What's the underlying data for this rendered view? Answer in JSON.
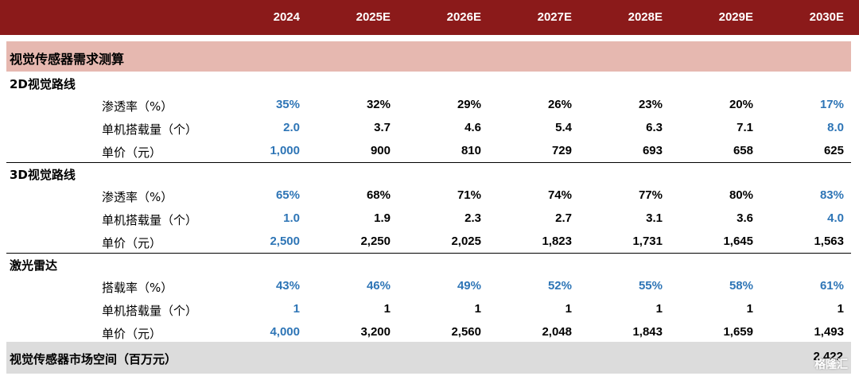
{
  "header": {
    "years": [
      "2024",
      "2025E",
      "2026E",
      "2027E",
      "2028E",
      "2029E",
      "2030E"
    ]
  },
  "band_title": "视觉传感器需求测算",
  "sections": [
    {
      "title": "2D视觉路线",
      "rows": [
        {
          "label": "渗透率（%）",
          "values": [
            "35%",
            "32%",
            "29%",
            "26%",
            "23%",
            "20%",
            "17%"
          ],
          "colors": [
            "blue",
            "black",
            "black",
            "black",
            "black",
            "black",
            "blue"
          ]
        },
        {
          "label": "单机搭载量（个）",
          "values": [
            "2.0",
            "3.7",
            "4.6",
            "5.4",
            "6.3",
            "7.1",
            "8.0"
          ],
          "colors": [
            "blue",
            "black",
            "black",
            "black",
            "black",
            "black",
            "blue"
          ]
        },
        {
          "label": "单价（元）",
          "values": [
            "1,000",
            "900",
            "810",
            "729",
            "693",
            "658",
            "625"
          ],
          "colors": [
            "blue",
            "black",
            "black",
            "black",
            "black",
            "black",
            "black"
          ]
        }
      ]
    },
    {
      "title": "3D视觉路线",
      "rows": [
        {
          "label": "渗透率（%）",
          "values": [
            "65%",
            "68%",
            "71%",
            "74%",
            "77%",
            "80%",
            "83%"
          ],
          "colors": [
            "blue",
            "black",
            "black",
            "black",
            "black",
            "black",
            "blue"
          ]
        },
        {
          "label": "单机搭载量（个）",
          "values": [
            "1.0",
            "1.9",
            "2.3",
            "2.7",
            "3.1",
            "3.6",
            "4.0"
          ],
          "colors": [
            "blue",
            "black",
            "black",
            "black",
            "black",
            "black",
            "blue"
          ]
        },
        {
          "label": "单价（元）",
          "values": [
            "2,500",
            "2,250",
            "2,025",
            "1,823",
            "1,731",
            "1,645",
            "1,563"
          ],
          "colors": [
            "blue",
            "black",
            "black",
            "black",
            "black",
            "black",
            "black"
          ]
        }
      ]
    },
    {
      "title": "激光雷达",
      "rows": [
        {
          "label": "搭载率（%）",
          "values": [
            "43%",
            "46%",
            "49%",
            "52%",
            "55%",
            "58%",
            "61%"
          ],
          "colors": [
            "blue",
            "blue",
            "blue",
            "blue",
            "blue",
            "blue",
            "blue"
          ]
        },
        {
          "label": "单机搭载量（个）",
          "values": [
            "1",
            "1",
            "1",
            "1",
            "1",
            "1",
            "1"
          ],
          "colors": [
            "blue",
            "black",
            "black",
            "black",
            "black",
            "black",
            "black"
          ]
        },
        {
          "label": "单价（元）",
          "values": [
            "4,000",
            "3,200",
            "2,560",
            "2,048",
            "1,843",
            "1,659",
            "1,493"
          ],
          "colors": [
            "blue",
            "black",
            "black",
            "black",
            "black",
            "black",
            "black"
          ]
        }
      ]
    }
  ],
  "total": {
    "label": "视觉传感器市场空间（百万元）",
    "value": "2,422"
  },
  "watermark": "格隆汇",
  "colors": {
    "header_bg": "#8b1a1a",
    "band_bg": "#e6b8b0",
    "blue": "#2e75b6",
    "total_bg": "#dcdcdc"
  }
}
